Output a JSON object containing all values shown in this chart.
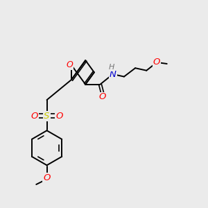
{
  "background_color": "#ebebeb",
  "atom_colors": {
    "O": "#ff0000",
    "N": "#0000cd",
    "S": "#cccc00",
    "C": "#000000",
    "H": "#777777"
  },
  "bond_color": "#000000",
  "lw": 1.4,
  "dlw": 1.2,
  "fontsize": 8.5
}
